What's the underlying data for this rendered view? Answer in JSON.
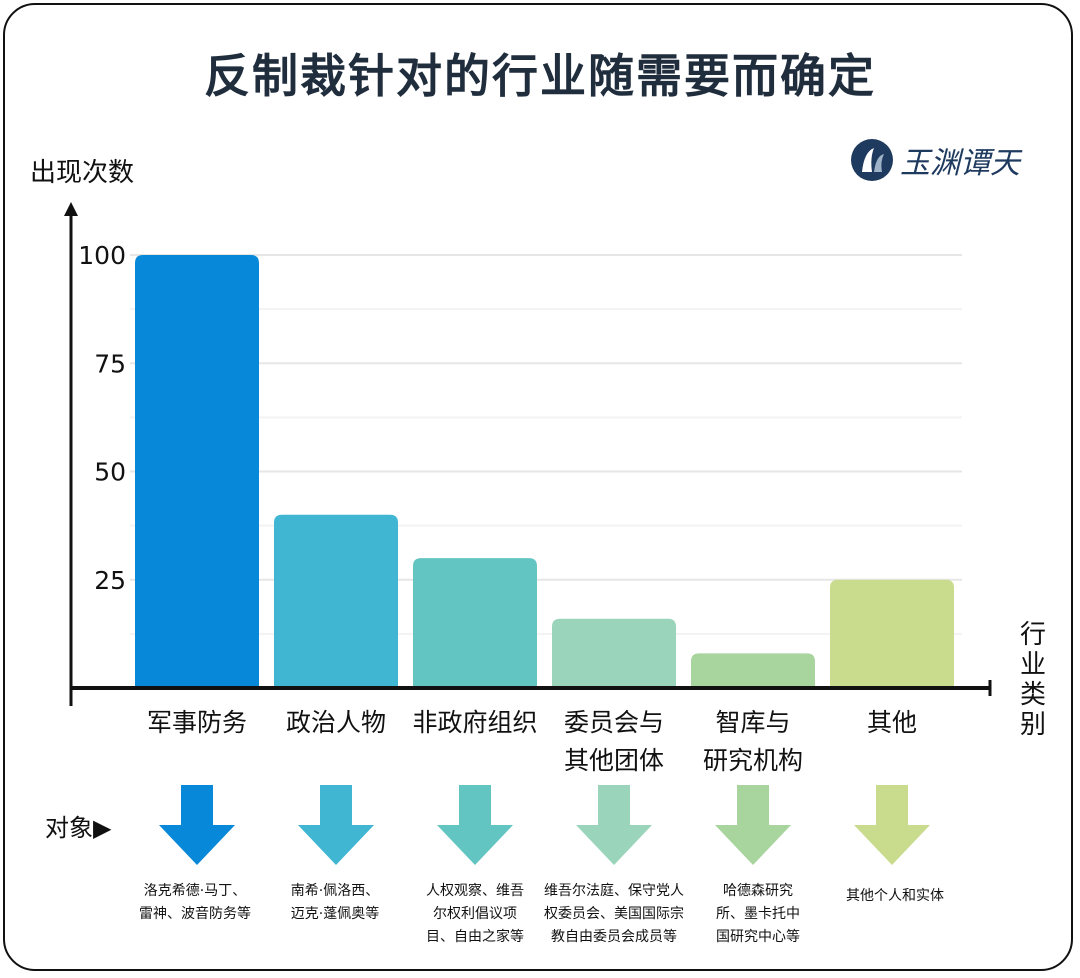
{
  "chart_data": {
    "type": "bar",
    "title": "反制裁针对的行业随需要而确定",
    "ylabel": "出现次数",
    "xlabel": "行业类别",
    "ylim": [
      0,
      100
    ],
    "yticks": [
      25,
      50,
      75,
      100
    ],
    "grid": true,
    "categories": [
      "军事防务",
      "政治人物",
      "非政府组织",
      "委员会与其他团体",
      "智库与研究机构",
      "其他"
    ],
    "category_lines": [
      [
        "军事防务"
      ],
      [
        "政治人物"
      ],
      [
        "非政府组织"
      ],
      [
        "委员会与",
        "其他团体"
      ],
      [
        "智库与",
        "研究机构"
      ],
      [
        "其他"
      ]
    ],
    "values": [
      100,
      40,
      30,
      16,
      8,
      25
    ],
    "colors": [
      "#0788d8",
      "#41b6d3",
      "#62c5c1",
      "#99d4bb",
      "#a8d49e",
      "#c9dc8e"
    ]
  },
  "logo": {
    "text": "玉渊谭天",
    "color": "#1f3a5f"
  },
  "targets": {
    "label": "对象▶",
    "items": [
      [
        "洛克希德·马丁、",
        "雷神、波音防务等"
      ],
      [
        "南希·佩洛西、",
        "迈克·蓬佩奥等"
      ],
      [
        "人权观察、维吾",
        "尔权利倡议项",
        "目、自由之家等"
      ],
      [
        "维吾尔法庭、保守党人",
        "权委员会、美国国际宗",
        "教自由委员会成员等"
      ],
      [
        "哈德森研究",
        "所、墨卡托中",
        "国研究中心等"
      ],
      [
        "其他个人和实体"
      ]
    ]
  }
}
